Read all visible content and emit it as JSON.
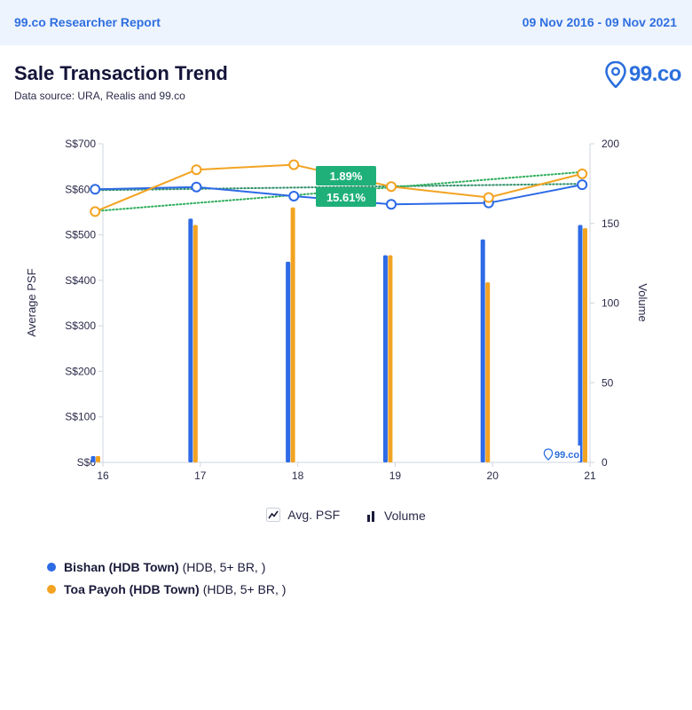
{
  "header": {
    "brand": "99.co Researcher Report",
    "date_range": "09 Nov 2016 - 09 Nov 2021"
  },
  "title": "Sale Transaction Trend",
  "source": "Data source: URA, Realis and 99.co",
  "logo": {
    "text": "99.co",
    "watermark": "99.co"
  },
  "legend": {
    "avg_psf": "Avg. PSF",
    "volume": "Volume"
  },
  "series_legend": [
    {
      "name": "Bishan (HDB Town)",
      "detail": "(HDB, 5+ BR, )",
      "color": "#2d6ae6"
    },
    {
      "name": "Toa Payoh (HDB Town)",
      "detail": "(HDB, 5+ BR, )",
      "color": "#f3a322"
    }
  ],
  "badges": [
    {
      "text": "1.89%",
      "color": "#1fb07a"
    },
    {
      "text": "15.61%",
      "color": "#1fb07a"
    }
  ],
  "chart_data": {
    "type": "bar+line",
    "categories": [
      "16",
      "17",
      "18",
      "19",
      "20",
      "21"
    ],
    "y_left": {
      "label": "Average PSF",
      "ticks": [
        "S$0",
        "S$100",
        "S$200",
        "S$300",
        "S$400",
        "S$500",
        "S$600",
        "S$700"
      ],
      "range": [
        0,
        700
      ]
    },
    "y_right": {
      "label": "Volume",
      "ticks": [
        "0",
        "50",
        "100",
        "150",
        "200"
      ],
      "range": [
        0,
        200
      ]
    },
    "x_range": [
      16,
      21
    ],
    "psf_series": [
      {
        "name": "Bishan (HDB Town)",
        "color": "#2d6ae6",
        "x": [
          15.92,
          16.96,
          17.96,
          18.96,
          19.96,
          20.92
        ],
        "values": [
          600,
          605,
          585,
          567,
          570,
          610
        ]
      },
      {
        "name": "Toa Payoh (HDB Town)",
        "color": "#f3a322",
        "x": [
          15.92,
          16.96,
          17.96,
          18.96,
          19.96,
          20.92
        ],
        "values": [
          551,
          643,
          654,
          606,
          582,
          634
        ]
      }
    ],
    "volume_series": [
      {
        "name": "Bishan (HDB Town)",
        "color": "#2d6ae6",
        "x": [
          15.9,
          16.9,
          17.9,
          18.9,
          19.9,
          20.9
        ],
        "values": [
          4,
          153,
          126,
          130,
          140,
          149
        ]
      },
      {
        "name": "Toa Payoh (HDB Town)",
        "color": "#f3a322",
        "x": [
          15.95,
          16.95,
          17.95,
          18.95,
          19.95,
          20.95
        ],
        "values": [
          4,
          149,
          160,
          130,
          113,
          147
        ]
      }
    ],
    "trend_lines": [
      {
        "name": "Bishan trend",
        "color": "#2f8f6a",
        "values": [
          598,
          612
        ]
      },
      {
        "name": "Toa Payoh trend",
        "color": "#2fae5c",
        "values": [
          552,
          638
        ]
      }
    ]
  }
}
